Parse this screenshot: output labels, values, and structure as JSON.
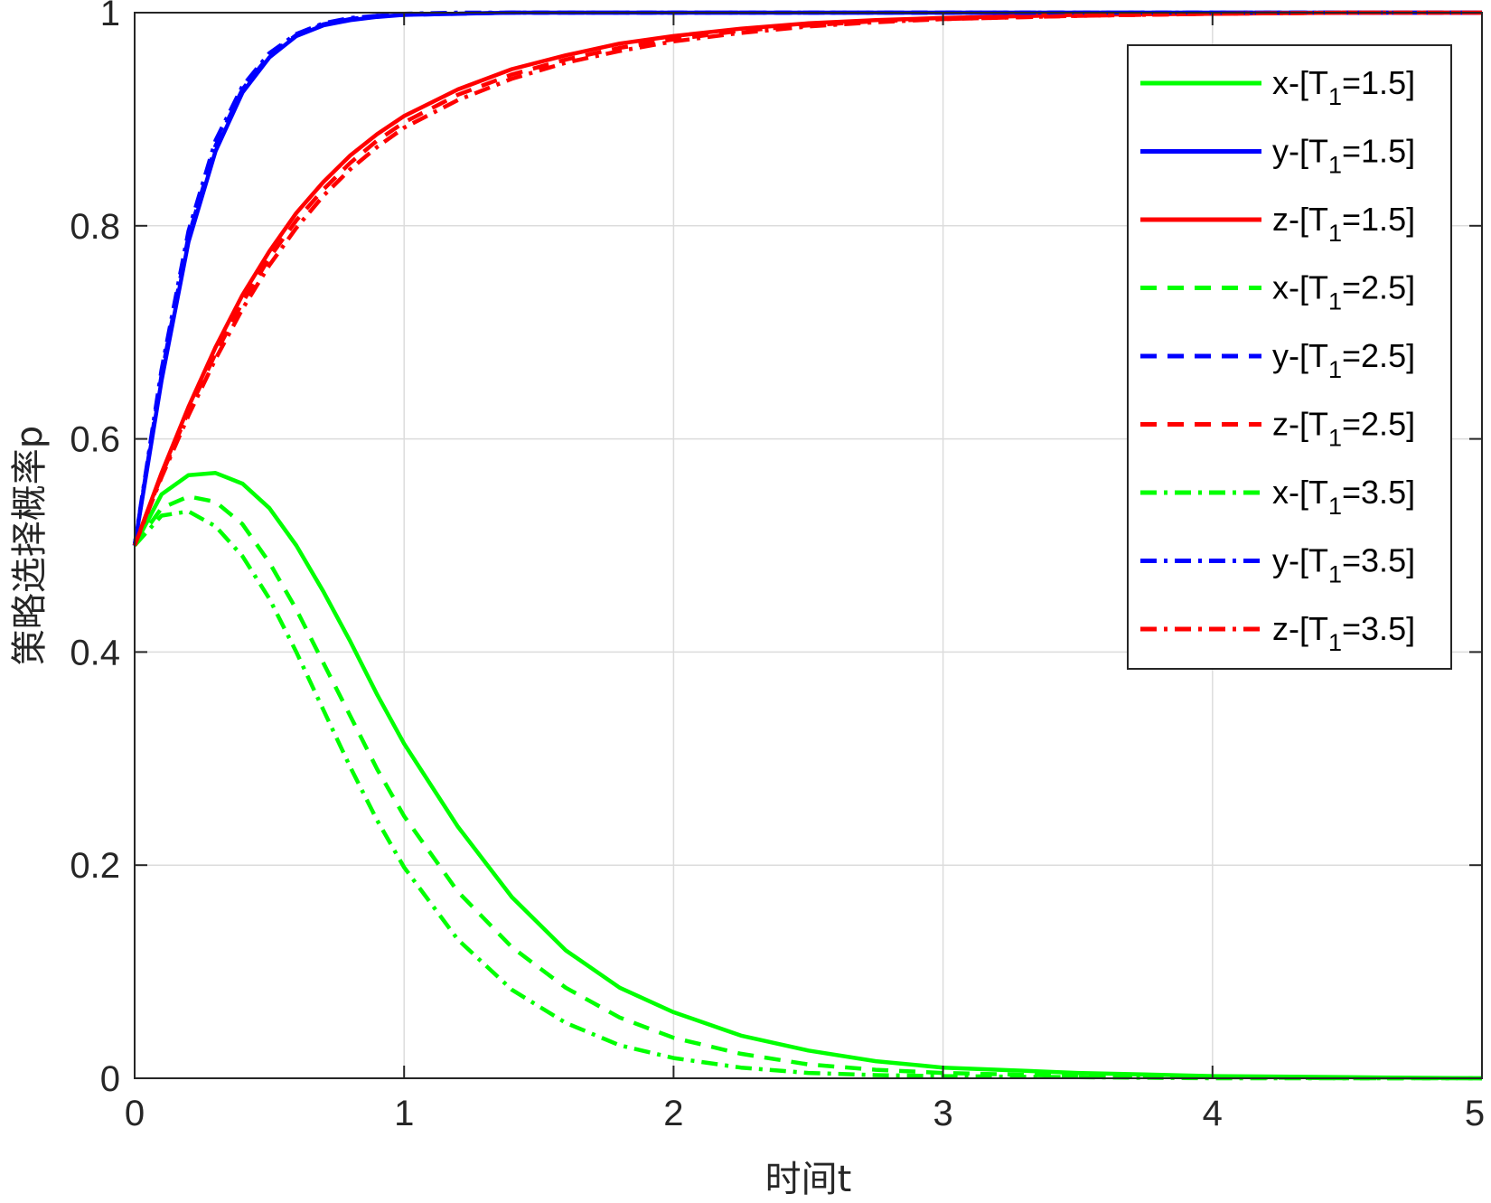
{
  "chart_data": {
    "type": "line",
    "title": "",
    "xlabel": "时间t",
    "ylabel": "策略选择概率p",
    "xlim": [
      0,
      5
    ],
    "ylim": [
      0,
      1
    ],
    "xticks": [
      0,
      1,
      2,
      3,
      4,
      5
    ],
    "xtick_labels": [
      "0",
      "1",
      "2",
      "3",
      "4",
      "5"
    ],
    "yticks": [
      0,
      0.2,
      0.4,
      0.6,
      0.8,
      1
    ],
    "ytick_labels": [
      "0",
      "0.2",
      "0.4",
      "0.6",
      "0.8",
      "1"
    ],
    "grid": true,
    "legend_position": "top-right",
    "x": [
      0,
      0.1,
      0.2,
      0.3,
      0.4,
      0.5,
      0.6,
      0.7,
      0.8,
      0.9,
      1.0,
      1.2,
      1.4,
      1.6,
      1.8,
      2.0,
      2.25,
      2.5,
      2.75,
      3.0,
      3.5,
      4.0,
      4.5,
      5.0
    ],
    "series": [
      {
        "name": "x-[T",
        "sub": "1",
        "suffix": "=1.5]",
        "color": "#00ff00",
        "dash": "solid",
        "values": [
          0.5,
          0.548,
          0.566,
          0.568,
          0.558,
          0.535,
          0.5,
          0.457,
          0.41,
          0.36,
          0.314,
          0.236,
          0.17,
          0.12,
          0.085,
          0.062,
          0.04,
          0.026,
          0.016,
          0.01,
          0.005,
          0.002,
          0.001,
          0.0
        ]
      },
      {
        "name": "y-[T",
        "sub": "1",
        "suffix": "=1.5]",
        "color": "#0000ff",
        "dash": "solid",
        "values": [
          0.5,
          0.655,
          0.785,
          0.87,
          0.925,
          0.958,
          0.978,
          0.988,
          0.993,
          0.996,
          0.998,
          0.999,
          1.0,
          1.0,
          1.0,
          1.0,
          1.0,
          1.0,
          1.0,
          1.0,
          1.0,
          1.0,
          1.0,
          1.0
        ]
      },
      {
        "name": "z-[T",
        "sub": "1",
        "suffix": "=1.5]",
        "color": "#ff0000",
        "dash": "solid",
        "values": [
          0.5,
          0.568,
          0.63,
          0.686,
          0.735,
          0.776,
          0.812,
          0.841,
          0.866,
          0.886,
          0.903,
          0.928,
          0.947,
          0.96,
          0.971,
          0.978,
          0.985,
          0.99,
          0.993,
          0.995,
          0.998,
          0.999,
          1.0,
          1.0
        ]
      },
      {
        "name": "x-[T",
        "sub": "1",
        "suffix": "=2.5]",
        "color": "#00ff00",
        "dash": "dashed",
        "values": [
          0.5,
          0.535,
          0.546,
          0.541,
          0.52,
          0.484,
          0.44,
          0.39,
          0.34,
          0.29,
          0.246,
          0.175,
          0.123,
          0.085,
          0.057,
          0.038,
          0.023,
          0.013,
          0.008,
          0.005,
          0.002,
          0.001,
          0.0,
          0.0
        ]
      },
      {
        "name": "y-[T",
        "sub": "1",
        "suffix": "=2.5]",
        "color": "#0000ff",
        "dash": "dashed",
        "values": [
          0.5,
          0.66,
          0.79,
          0.875,
          0.928,
          0.96,
          0.979,
          0.989,
          0.994,
          0.997,
          0.998,
          0.999,
          1.0,
          1.0,
          1.0,
          1.0,
          1.0,
          1.0,
          1.0,
          1.0,
          1.0,
          1.0,
          1.0,
          1.0
        ]
      },
      {
        "name": "z-[T",
        "sub": "1",
        "suffix": "=2.5]",
        "color": "#ff0000",
        "dash": "dashed",
        "values": [
          0.5,
          0.566,
          0.626,
          0.68,
          0.728,
          0.77,
          0.805,
          0.834,
          0.859,
          0.88,
          0.897,
          0.923,
          0.942,
          0.956,
          0.967,
          0.975,
          0.983,
          0.988,
          0.992,
          0.994,
          0.997,
          0.999,
          1.0,
          1.0
        ]
      },
      {
        "name": "x-[T",
        "sub": "1",
        "suffix": "=3.5]",
        "color": "#00ff00",
        "dash": "dashdot",
        "values": [
          0.5,
          0.528,
          0.532,
          0.518,
          0.49,
          0.45,
          0.4,
          0.346,
          0.292,
          0.242,
          0.198,
          0.13,
          0.083,
          0.052,
          0.031,
          0.019,
          0.01,
          0.005,
          0.003,
          0.002,
          0.001,
          0.0,
          0.0,
          0.0
        ]
      },
      {
        "name": "y-[T",
        "sub": "1",
        "suffix": "=3.5]",
        "color": "#0000ff",
        "dash": "dashdot",
        "values": [
          0.5,
          0.665,
          0.795,
          0.88,
          0.931,
          0.962,
          0.98,
          0.99,
          0.995,
          0.997,
          0.999,
          1.0,
          1.0,
          1.0,
          1.0,
          1.0,
          1.0,
          1.0,
          1.0,
          1.0,
          1.0,
          1.0,
          1.0,
          1.0
        ]
      },
      {
        "name": "z-[T",
        "sub": "1",
        "suffix": "=3.5]",
        "color": "#ff0000",
        "dash": "dashdot",
        "values": [
          0.5,
          0.564,
          0.622,
          0.675,
          0.722,
          0.763,
          0.798,
          0.828,
          0.853,
          0.874,
          0.892,
          0.918,
          0.938,
          0.953,
          0.964,
          0.973,
          0.981,
          0.987,
          0.991,
          0.994,
          0.997,
          0.999,
          1.0,
          1.0
        ]
      }
    ]
  }
}
